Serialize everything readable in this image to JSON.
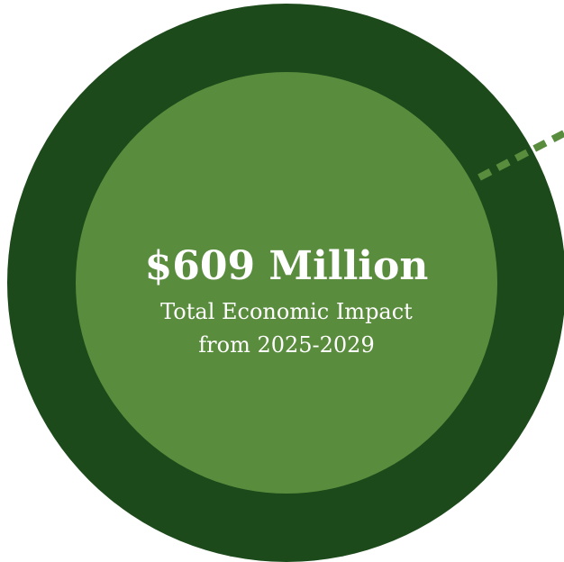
{
  "headline": {
    "value": "$609 Million",
    "line1": "Total Economic Impact",
    "line2": "from 2025-2029"
  },
  "colors": {
    "outer_ring": "#1c4a1a",
    "inner_circle": "#5a8c3e",
    "connector": "#5a8c3e",
    "text": "#ffffff",
    "background": "#ffffff"
  }
}
